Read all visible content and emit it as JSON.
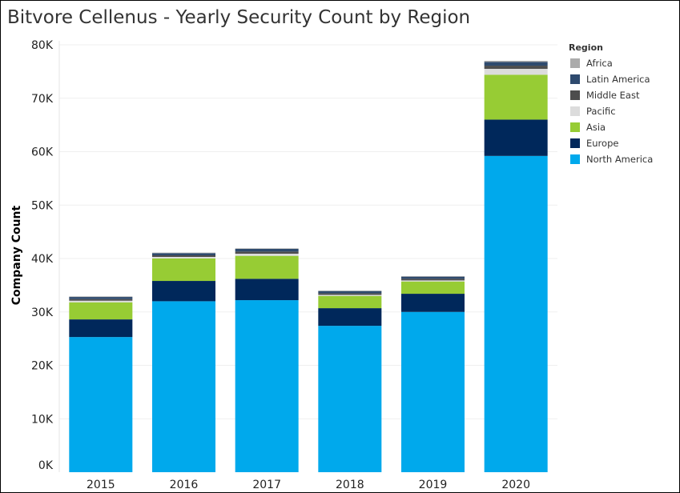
{
  "chart_data": {
    "type": "bar",
    "stacked": true,
    "title": "Bitvore Cellenus - Yearly Security Count by Region",
    "xlabel": "",
    "ylabel": "Company Count",
    "ylim": [
      0,
      80000
    ],
    "yticks": [
      0,
      10000,
      20000,
      30000,
      40000,
      50000,
      60000,
      70000,
      80000
    ],
    "ytick_labels": [
      "0K",
      "10K",
      "20K",
      "30K",
      "40K",
      "50K",
      "60K",
      "70K",
      "80K"
    ],
    "categories": [
      "2015",
      "2016",
      "2017",
      "2018",
      "2019",
      "2020"
    ],
    "legend_title": "Region",
    "legend_position": "top-right",
    "series": [
      {
        "name": "North America",
        "color": "#00a9ec",
        "values": [
          25300,
          32000,
          32200,
          27400,
          30000,
          59200
        ]
      },
      {
        "name": "Europe",
        "color": "#00285b",
        "values": [
          3300,
          3800,
          4000,
          3300,
          3400,
          6800
        ]
      },
      {
        "name": "Asia",
        "color": "#97cc34",
        "values": [
          3200,
          4200,
          4300,
          2300,
          2300,
          8400
        ]
      },
      {
        "name": "Pacific",
        "color": "#dcdcdc",
        "values": [
          300,
          300,
          400,
          200,
          200,
          1100
        ]
      },
      {
        "name": "Middle East",
        "color": "#4d4d4d",
        "values": [
          300,
          300,
          400,
          300,
          300,
          600
        ]
      },
      {
        "name": "Latin America",
        "color": "#2e4a6e",
        "values": [
          400,
          400,
          500,
          400,
          400,
          700
        ]
      },
      {
        "name": "Africa",
        "color": "#ababab",
        "values": [
          100,
          100,
          100,
          100,
          100,
          200
        ]
      }
    ],
    "legend_order": [
      "Africa",
      "Latin America",
      "Middle East",
      "Pacific",
      "Asia",
      "Europe",
      "North America"
    ]
  }
}
